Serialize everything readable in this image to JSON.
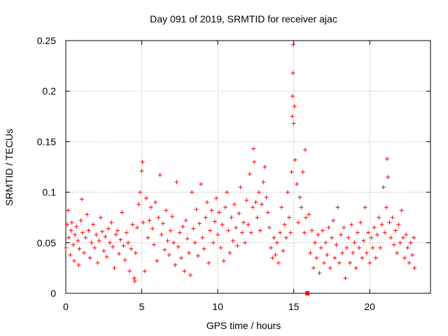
{
  "chart_data": {
    "type": "scatter",
    "title": "Day 091 of 2019, SRMTID for receiver ajac",
    "xlabel": "GPS time / hours",
    "ylabel": "SRMTID / TECUs",
    "xlim": [
      0,
      24
    ],
    "ylim": [
      0,
      0.25
    ],
    "xticks": [
      0,
      5,
      10,
      15,
      20
    ],
    "xtick_labels": [
      "0",
      "5",
      "10",
      "15",
      "20"
    ],
    "yticks": [
      0,
      0.05,
      0.1,
      0.15,
      0.2,
      0.25
    ],
    "ytick_labels": [
      "0",
      "0.05",
      "0.1",
      "0.15",
      "0.2",
      "0.25"
    ],
    "grid": true,
    "marker": "+",
    "color": "#ff0000",
    "series": [
      {
        "name": "SRMTID",
        "points": [
          [
            0.0,
            0.045
          ],
          [
            0.1,
            0.068
          ],
          [
            0.15,
            0.082
          ],
          [
            0.2,
            0.055
          ],
          [
            0.3,
            0.038
          ],
          [
            0.35,
            0.062
          ],
          [
            0.4,
            0.07
          ],
          [
            0.5,
            0.048
          ],
          [
            0.55,
            0.032
          ],
          [
            0.6,
            0.058
          ],
          [
            0.7,
            0.066
          ],
          [
            0.8,
            0.052
          ],
          [
            0.85,
            0.028
          ],
          [
            0.9,
            0.044
          ],
          [
            1.0,
            0.072
          ],
          [
            1.05,
            0.093
          ],
          [
            1.1,
            0.06
          ],
          [
            1.2,
            0.04
          ],
          [
            1.3,
            0.055
          ],
          [
            1.4,
            0.078
          ],
          [
            1.5,
            0.062
          ],
          [
            1.6,
            0.035
          ],
          [
            1.7,
            0.05
          ],
          [
            1.8,
            0.068
          ],
          [
            1.9,
            0.045
          ],
          [
            2.0,
            0.058
          ],
          [
            2.1,
            0.03
          ],
          [
            2.2,
            0.052
          ],
          [
            2.3,
            0.075
          ],
          [
            2.4,
            0.061
          ],
          [
            2.5,
            0.042
          ],
          [
            2.6,
            0.056
          ],
          [
            2.7,
            0.036
          ],
          [
            2.8,
            0.064
          ],
          [
            2.9,
            0.05
          ],
          [
            3.0,
            0.07
          ],
          [
            3.1,
            0.046
          ],
          [
            3.2,
            0.025
          ],
          [
            3.3,
            0.058
          ],
          [
            3.4,
            0.062
          ],
          [
            3.5,
            0.039
          ],
          [
            3.6,
            0.053
          ],
          [
            3.7,
            0.08
          ],
          [
            3.8,
            0.047
          ],
          [
            3.9,
            0.033
          ],
          [
            4.0,
            0.06
          ],
          [
            4.1,
            0.05
          ],
          [
            4.2,
            0.022
          ],
          [
            4.3,
            0.044
          ],
          [
            4.4,
            0.068
          ],
          [
            4.5,
            0.015
          ],
          [
            4.55,
            0.012
          ],
          [
            4.6,
            0.04
          ],
          [
            4.7,
            0.065
          ],
          [
            4.8,
            0.088
          ],
          [
            4.9,
            0.1
          ],
          [
            5.0,
            0.121
          ],
          [
            5.05,
            0.13
          ],
          [
            5.1,
            0.07
          ],
          [
            5.2,
            0.022
          ],
          [
            5.3,
            0.094
          ],
          [
            5.4,
            0.055
          ],
          [
            5.5,
            0.072
          ],
          [
            5.6,
            0.085
          ],
          [
            5.7,
            0.064
          ],
          [
            5.8,
            0.048
          ],
          [
            5.9,
            0.09
          ],
          [
            6.0,
            0.032
          ],
          [
            6.1,
            0.075
          ],
          [
            6.2,
            0.117
          ],
          [
            6.3,
            0.058
          ],
          [
            6.4,
            0.069
          ],
          [
            6.5,
            0.043
          ],
          [
            6.6,
            0.082
          ],
          [
            6.7,
            0.052
          ],
          [
            6.8,
            0.038
          ],
          [
            6.9,
            0.062
          ],
          [
            7.0,
            0.076
          ],
          [
            7.1,
            0.05
          ],
          [
            7.2,
            0.028
          ],
          [
            7.3,
            0.11
          ],
          [
            7.4,
            0.046
          ],
          [
            7.5,
            0.06
          ],
          [
            7.6,
            0.035
          ],
          [
            7.7,
            0.066
          ],
          [
            7.8,
            0.022
          ],
          [
            7.9,
            0.072
          ],
          [
            8.0,
            0.054
          ],
          [
            8.1,
            0.04
          ],
          [
            8.2,
            0.018
          ],
          [
            8.3,
            0.1
          ],
          [
            8.4,
            0.064
          ],
          [
            8.5,
            0.05
          ],
          [
            8.6,
            0.083
          ],
          [
            8.7,
            0.037
          ],
          [
            8.8,
            0.069
          ],
          [
            8.9,
            0.108
          ],
          [
            9.0,
            0.055
          ],
          [
            9.1,
            0.044
          ],
          [
            9.2,
            0.075
          ],
          [
            9.3,
            0.09
          ],
          [
            9.4,
            0.03
          ],
          [
            9.5,
            0.062
          ],
          [
            9.6,
            0.082
          ],
          [
            9.7,
            0.05
          ],
          [
            9.8,
            0.071
          ],
          [
            9.9,
            0.094
          ],
          [
            10.0,
            0.058
          ],
          [
            10.1,
            0.08
          ],
          [
            10.2,
            0.045
          ],
          [
            10.3,
            0.068
          ],
          [
            10.4,
            0.032
          ],
          [
            10.5,
            0.085
          ],
          [
            10.6,
            0.1
          ],
          [
            10.7,
            0.062
          ],
          [
            10.8,
            0.04
          ],
          [
            10.9,
            0.075
          ],
          [
            11.0,
            0.052
          ],
          [
            11.1,
            0.088
          ],
          [
            11.2,
            0.065
          ],
          [
            11.3,
            0.047
          ],
          [
            11.4,
            0.079
          ],
          [
            11.5,
            0.105
          ],
          [
            11.6,
            0.06
          ],
          [
            11.7,
            0.07
          ],
          [
            11.8,
            0.05
          ],
          [
            11.9,
            0.092
          ],
          [
            12.0,
            0.068
          ],
          [
            12.1,
            0.118
          ],
          [
            12.2,
            0.06
          ],
          [
            12.3,
            0.085
          ],
          [
            12.35,
            0.143
          ],
          [
            12.4,
            0.13
          ],
          [
            12.5,
            0.09
          ],
          [
            12.6,
            0.075
          ],
          [
            12.7,
            0.1
          ],
          [
            12.8,
            0.062
          ],
          [
            12.9,
            0.088
          ],
          [
            13.0,
            0.11
          ],
          [
            13.1,
            0.125
          ],
          [
            13.2,
            0.095
          ],
          [
            13.3,
            0.08
          ],
          [
            13.4,
            0.065
          ],
          [
            13.5,
            0.045
          ],
          [
            13.6,
            0.035
          ],
          [
            13.7,
            0.055
          ],
          [
            13.8,
            0.038
          ],
          [
            13.9,
            0.05
          ],
          [
            14.0,
            0.03
          ],
          [
            14.1,
            0.06
          ],
          [
            14.2,
            0.085
          ],
          [
            14.3,
            0.042
          ],
          [
            14.4,
            0.068
          ],
          [
            14.5,
            0.055
          ],
          [
            14.6,
            0.1
          ],
          [
            14.7,
            0.075
          ],
          [
            14.8,
            0.06
          ],
          [
            14.85,
            0.12
          ],
          [
            14.9,
            0.175
          ],
          [
            14.92,
            0.195
          ],
          [
            14.95,
            0.218
          ],
          [
            14.97,
            0.246
          ],
          [
            15.0,
            0.168
          ],
          [
            15.05,
            0.185
          ],
          [
            15.1,
            0.132
          ],
          [
            15.2,
            0.108
          ],
          [
            15.3,
            0.07
          ],
          [
            15.4,
            0.095
          ],
          [
            15.5,
            0.085
          ],
          [
            15.6,
            0.12
          ],
          [
            15.7,
            0.06
          ],
          [
            15.75,
            0.142
          ],
          [
            15.8,
            0.075
          ],
          [
            16.0,
            0.078
          ],
          [
            16.1,
            0.04
          ],
          [
            16.2,
            0.062
          ],
          [
            16.3,
            0.025
          ],
          [
            16.4,
            0.05
          ],
          [
            16.5,
            0.035
          ],
          [
            16.6,
            0.058
          ],
          [
            16.7,
            0.02
          ],
          [
            16.8,
            0.045
          ],
          [
            16.9,
            0.062
          ],
          [
            17.0,
            0.03
          ],
          [
            17.1,
            0.05
          ],
          [
            17.2,
            0.038
          ],
          [
            17.3,
            0.065
          ],
          [
            17.4,
            0.025
          ],
          [
            17.5,
            0.055
          ],
          [
            17.6,
            0.072
          ],
          [
            17.7,
            0.035
          ],
          [
            17.8,
            0.048
          ],
          [
            17.9,
            0.085
          ],
          [
            18.0,
            0.03
          ],
          [
            18.1,
            0.058
          ],
          [
            18.2,
            0.04
          ],
          [
            18.3,
            0.065
          ],
          [
            18.4,
            0.015
          ],
          [
            18.5,
            0.045
          ],
          [
            18.6,
            0.055
          ],
          [
            18.7,
            0.03
          ],
          [
            18.8,
            0.068
          ],
          [
            18.9,
            0.04
          ],
          [
            19.0,
            0.05
          ],
          [
            19.1,
            0.025
          ],
          [
            19.2,
            0.06
          ],
          [
            19.3,
            0.045
          ],
          [
            19.4,
            0.07
          ],
          [
            19.5,
            0.035
          ],
          [
            19.6,
            0.052
          ],
          [
            19.7,
            0.085
          ],
          [
            19.8,
            0.04
          ],
          [
            19.9,
            0.06
          ],
          [
            20.0,
            0.03
          ],
          [
            20.1,
            0.055
          ],
          [
            20.2,
            0.045
          ],
          [
            20.3,
            0.065
          ],
          [
            20.4,
            0.035
          ],
          [
            20.5,
            0.058
          ],
          [
            20.6,
            0.075
          ],
          [
            20.7,
            0.045
          ],
          [
            20.8,
            0.068
          ],
          [
            20.9,
            0.105
          ],
          [
            21.0,
            0.06
          ],
          [
            21.1,
            0.085
          ],
          [
            21.15,
            0.133
          ],
          [
            21.2,
            0.115
          ],
          [
            21.3,
            0.07
          ],
          [
            21.4,
            0.055
          ],
          [
            21.5,
            0.075
          ],
          [
            21.6,
            0.048
          ],
          [
            21.7,
            0.062
          ],
          [
            21.8,
            0.04
          ],
          [
            21.9,
            0.068
          ],
          [
            22.0,
            0.05
          ],
          [
            22.1,
            0.082
          ],
          [
            22.2,
            0.055
          ],
          [
            22.3,
            0.035
          ],
          [
            22.4,
            0.058
          ],
          [
            22.5,
            0.045
          ],
          [
            22.6,
            0.03
          ],
          [
            22.7,
            0.05
          ],
          [
            22.8,
            0.038
          ],
          [
            22.9,
            0.055
          ],
          [
            22.95,
            0.025
          ]
        ]
      }
    ],
    "special_marker": {
      "x": 15.9,
      "y": 0.0,
      "shape": "square"
    }
  }
}
